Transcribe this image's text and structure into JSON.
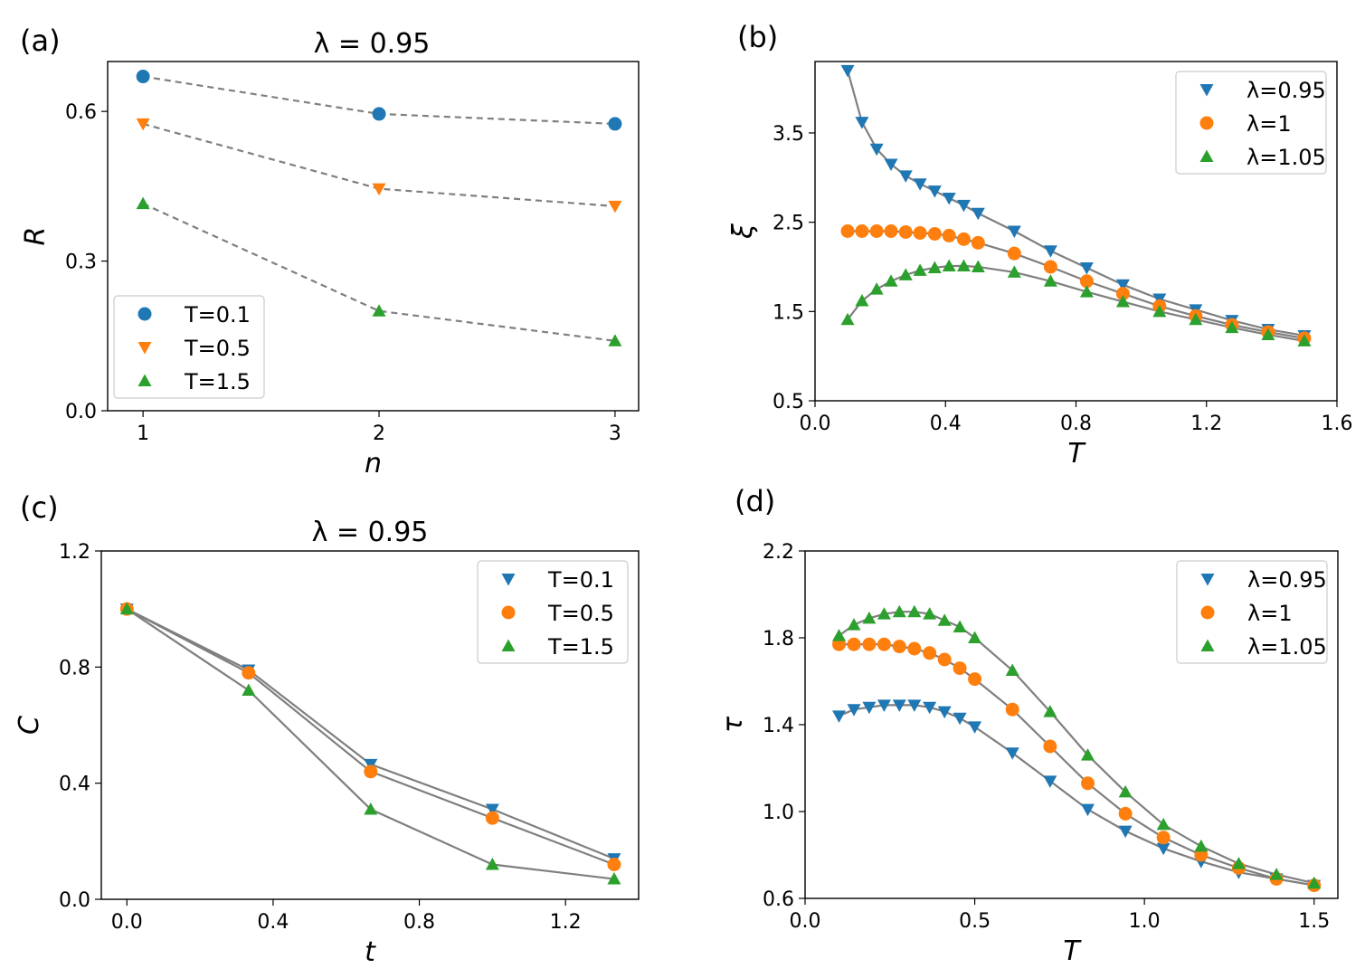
{
  "colors": {
    "blue": "#1f77b4",
    "orange": "#ff7f0e",
    "green": "#2ca02c",
    "line": "#7f7f7f",
    "legend_border": "#cccccc"
  },
  "chart_data": [
    {
      "id": "a",
      "panel_label": "(a)",
      "type": "scatter",
      "title": "λ = 0.95",
      "xlabel": "n",
      "ylabel": "R",
      "xlim": [
        0.85,
        3.1
      ],
      "ylim": [
        0.0,
        0.7
      ],
      "xticks": [
        1,
        2,
        3
      ],
      "xticklabels": [
        "1",
        "2",
        "3"
      ],
      "yticks": [
        0.0,
        0.3,
        0.6
      ],
      "yticklabels": [
        "0.0",
        "0.3",
        "0.6"
      ],
      "connector": "dashed",
      "legend_position": "lower-left",
      "series": [
        {
          "name": "T=0.1",
          "color": "blue",
          "marker": "circle",
          "x": [
            1,
            2,
            3
          ],
          "y": [
            0.67,
            0.595,
            0.575
          ]
        },
        {
          "name": "T=0.5",
          "color": "orange",
          "marker": "triangle-down",
          "x": [
            1,
            2,
            3
          ],
          "y": [
            0.575,
            0.445,
            0.41
          ]
        },
        {
          "name": "T=1.5",
          "color": "green",
          "marker": "triangle-up",
          "x": [
            1,
            2,
            3
          ],
          "y": [
            0.415,
            0.2,
            0.14
          ]
        }
      ]
    },
    {
      "id": "b",
      "panel_label": "(b)",
      "type": "line",
      "title": "",
      "xlabel": "T",
      "ylabel": "ξ",
      "xlim": [
        0.0,
        1.6
      ],
      "ylim": [
        0.5,
        4.3
      ],
      "xticks": [
        0.0,
        0.4,
        0.8,
        1.2,
        1.6
      ],
      "xticklabels": [
        "0.0",
        "0.4",
        "0.8",
        "1.2",
        "1.6"
      ],
      "yticks": [
        0.5,
        1.5,
        2.5,
        3.5
      ],
      "yticklabels": [
        "0.5",
        "1.5",
        "2.5",
        "3.5"
      ],
      "connector": "solid",
      "legend_position": "top-right",
      "series": [
        {
          "name": "λ=0.95",
          "color": "blue",
          "marker": "triangle-down",
          "x": [
            0.1,
            0.144,
            0.189,
            0.233,
            0.278,
            0.322,
            0.367,
            0.411,
            0.456,
            0.5,
            0.611,
            0.722,
            0.833,
            0.944,
            1.056,
            1.167,
            1.278,
            1.389,
            1.5
          ],
          "y": [
            4.2,
            3.62,
            3.32,
            3.15,
            3.02,
            2.93,
            2.85,
            2.77,
            2.69,
            2.6,
            2.4,
            2.18,
            1.99,
            1.8,
            1.64,
            1.52,
            1.4,
            1.3,
            1.23
          ]
        },
        {
          "name": "λ=1",
          "color": "orange",
          "marker": "circle",
          "x": [
            0.1,
            0.144,
            0.189,
            0.233,
            0.278,
            0.322,
            0.367,
            0.411,
            0.456,
            0.5,
            0.611,
            0.722,
            0.833,
            0.944,
            1.056,
            1.167,
            1.278,
            1.389,
            1.5
          ],
          "y": [
            2.4,
            2.4,
            2.4,
            2.4,
            2.39,
            2.38,
            2.37,
            2.35,
            2.31,
            2.27,
            2.15,
            2.0,
            1.84,
            1.7,
            1.56,
            1.45,
            1.35,
            1.27,
            1.2
          ]
        },
        {
          "name": "λ=1.05",
          "color": "green",
          "marker": "triangle-up",
          "x": [
            0.1,
            0.144,
            0.189,
            0.233,
            0.278,
            0.322,
            0.367,
            0.411,
            0.456,
            0.5,
            0.611,
            0.722,
            0.833,
            0.944,
            1.056,
            1.167,
            1.278,
            1.389,
            1.5
          ],
          "y": [
            1.41,
            1.62,
            1.75,
            1.84,
            1.91,
            1.96,
            1.99,
            2.01,
            2.01,
            2.0,
            1.94,
            1.84,
            1.72,
            1.61,
            1.5,
            1.41,
            1.32,
            1.24,
            1.17
          ]
        }
      ]
    },
    {
      "id": "c",
      "panel_label": "(c)",
      "type": "line",
      "title": "λ = 0.95",
      "xlabel": "t",
      "ylabel": "C",
      "xlim": [
        -0.07,
        1.4
      ],
      "ylim": [
        0.0,
        1.2
      ],
      "xticks": [
        0.0,
        0.4,
        0.8,
        1.2
      ],
      "xticklabels": [
        "0.0",
        "0.4",
        "0.8",
        "1.2"
      ],
      "yticks": [
        0.0,
        0.4,
        0.8,
        1.2
      ],
      "yticklabels": [
        "0.0",
        "0.4",
        "0.8",
        "1.2"
      ],
      "connector": "solid",
      "legend_position": "top-right",
      "series": [
        {
          "name": "T=0.1",
          "color": "blue",
          "marker": "triangle-down",
          "x": [
            0,
            0.333,
            0.667,
            1.0,
            1.333
          ],
          "y": [
            1.0,
            0.79,
            0.465,
            0.31,
            0.14
          ]
        },
        {
          "name": "T=0.5",
          "color": "orange",
          "marker": "circle",
          "x": [
            0,
            0.333,
            0.667,
            1.0,
            1.333
          ],
          "y": [
            1.0,
            0.78,
            0.44,
            0.28,
            0.12
          ]
        },
        {
          "name": "T=1.5",
          "color": "green",
          "marker": "triangle-up",
          "x": [
            0,
            0.333,
            0.667,
            1.0,
            1.333
          ],
          "y": [
            1.0,
            0.72,
            0.31,
            0.12,
            0.07
          ]
        }
      ]
    },
    {
      "id": "d",
      "panel_label": "(d)",
      "type": "line",
      "title": "",
      "xlabel": "T",
      "ylabel": "τ",
      "xlim": [
        0.0,
        1.57
      ],
      "ylim": [
        0.6,
        2.2
      ],
      "xticks": [
        0.0,
        0.5,
        1.0,
        1.5
      ],
      "xticklabels": [
        "0.0",
        "0.5",
        "1.0",
        "1.5"
      ],
      "yticks": [
        0.6,
        1.0,
        1.4,
        1.8,
        2.2
      ],
      "yticklabels": [
        "0.6",
        "1.0",
        "1.4",
        "1.8",
        "2.2"
      ],
      "connector": "solid",
      "legend_position": "top-right",
      "series": [
        {
          "name": "λ=0.95",
          "color": "blue",
          "marker": "triangle-down",
          "x": [
            0.1,
            0.144,
            0.189,
            0.233,
            0.278,
            0.322,
            0.367,
            0.411,
            0.456,
            0.5,
            0.611,
            0.722,
            0.833,
            0.944,
            1.056,
            1.167,
            1.278,
            1.389,
            1.5
          ],
          "y": [
            1.44,
            1.47,
            1.48,
            1.49,
            1.49,
            1.49,
            1.48,
            1.46,
            1.43,
            1.39,
            1.27,
            1.14,
            1.01,
            0.91,
            0.83,
            0.77,
            0.72,
            0.69,
            0.66
          ]
        },
        {
          "name": "λ=1",
          "color": "orange",
          "marker": "circle",
          "x": [
            0.1,
            0.144,
            0.189,
            0.233,
            0.278,
            0.322,
            0.367,
            0.411,
            0.456,
            0.5,
            0.611,
            0.722,
            0.833,
            0.944,
            1.056,
            1.167,
            1.278,
            1.389,
            1.5
          ],
          "y": [
            1.77,
            1.77,
            1.77,
            1.77,
            1.76,
            1.75,
            1.73,
            1.7,
            1.66,
            1.61,
            1.47,
            1.3,
            1.13,
            0.99,
            0.88,
            0.8,
            0.74,
            0.69,
            0.66
          ]
        },
        {
          "name": "λ=1.05",
          "color": "green",
          "marker": "triangle-up",
          "x": [
            0.1,
            0.144,
            0.189,
            0.233,
            0.278,
            0.322,
            0.367,
            0.411,
            0.456,
            0.5,
            0.611,
            0.722,
            0.833,
            0.944,
            1.056,
            1.167,
            1.278,
            1.389,
            1.5
          ],
          "y": [
            1.81,
            1.86,
            1.89,
            1.91,
            1.92,
            1.92,
            1.91,
            1.88,
            1.85,
            1.8,
            1.65,
            1.46,
            1.26,
            1.09,
            0.94,
            0.84,
            0.76,
            0.71,
            0.67
          ]
        }
      ]
    }
  ]
}
